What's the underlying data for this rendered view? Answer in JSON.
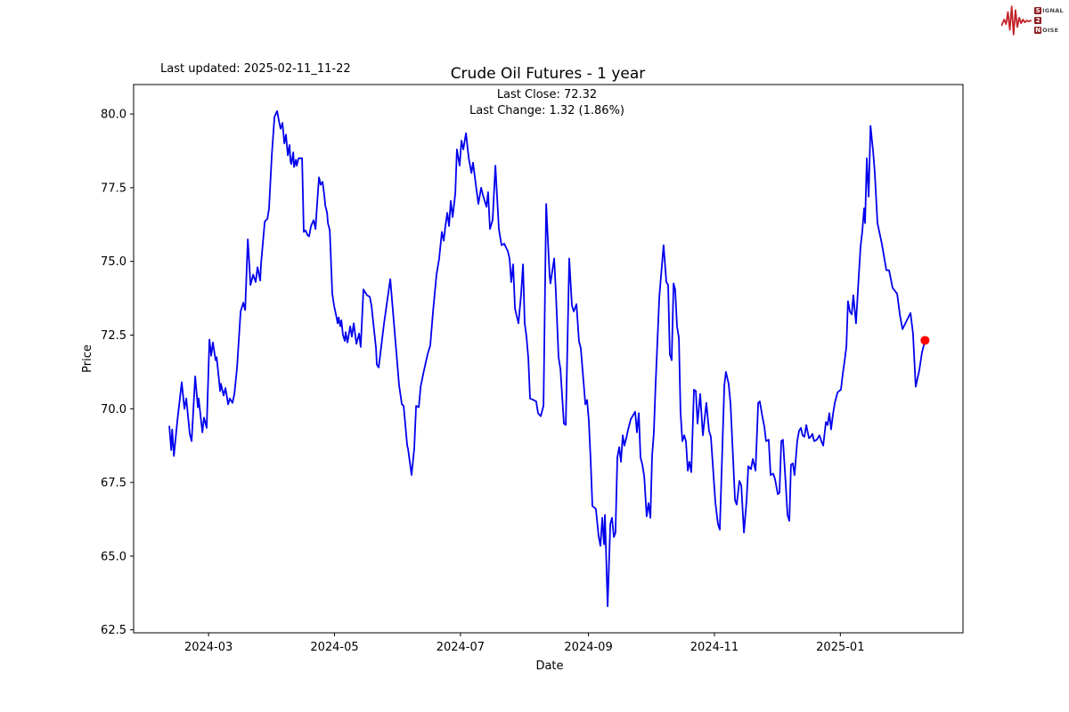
{
  "logo": {
    "rows": [
      {
        "boxed": "S",
        "rest": "IGNAL"
      },
      {
        "boxed": "2",
        "rest": ""
      },
      {
        "boxed": "N",
        "rest": "OISE"
      }
    ],
    "wave_color": "#c32127"
  },
  "chart_data": {
    "type": "line",
    "title": "Crude Oil Futures - 1 year",
    "annotation_line1": "Last Close: 72.32",
    "annotation_line2": "Last Change: 1.32 (1.86%)",
    "last_updated": "Last updated: 2025-02-11_11-22",
    "xlabel": "Date",
    "ylabel": "Price",
    "line_color": "#0000ee",
    "marker_color": "#ff0000",
    "grid": false,
    "legend": "none",
    "x_start_date": "2024-02-11",
    "x_end_date": "2025-02-11",
    "x_range_days": [
      -17.3,
      384.4
    ],
    "y_range": [
      62.4,
      81.0
    ],
    "y_ticks": [
      62.5,
      65.0,
      67.5,
      70.0,
      72.5,
      75.0,
      77.5,
      80.0
    ],
    "x_ticks": [
      {
        "day": 19,
        "label": "2024-03"
      },
      {
        "day": 80,
        "label": "2024-05"
      },
      {
        "day": 141,
        "label": "2024-07"
      },
      {
        "day": 203,
        "label": "2024-09"
      },
      {
        "day": 264,
        "label": "2024-11"
      },
      {
        "day": 325,
        "label": "2025-01"
      }
    ],
    "last_point": {
      "day": 366,
      "price": 72.32
    },
    "last_close": 72.32,
    "last_change": 1.32,
    "last_change_pct": 1.86,
    "points": [
      [
        0,
        69.4
      ],
      [
        0.9,
        68.6
      ],
      [
        1.4,
        69.3
      ],
      [
        2.2,
        68.4
      ],
      [
        3.9,
        69.6
      ],
      [
        6,
        70.9
      ],
      [
        7.3,
        70
      ],
      [
        8.2,
        70.35
      ],
      [
        9.9,
        69.15
      ],
      [
        10.8,
        68.9
      ],
      [
        12.5,
        71.1
      ],
      [
        13.8,
        70.05
      ],
      [
        14.2,
        70.35
      ],
      [
        16,
        69.2
      ],
      [
        16.8,
        69.7
      ],
      [
        18.1,
        69.35
      ],
      [
        19.4,
        72.35
      ],
      [
        20.3,
        71.8
      ],
      [
        21.1,
        72.25
      ],
      [
        22.4,
        71.65
      ],
      [
        22.9,
        71.75
      ],
      [
        24.6,
        70.6
      ],
      [
        25,
        70.85
      ],
      [
        26.3,
        70.45
      ],
      [
        27.2,
        70.7
      ],
      [
        28.5,
        70.15
      ],
      [
        29.3,
        70.35
      ],
      [
        30.6,
        70.2
      ],
      [
        31.5,
        70.5
      ],
      [
        32.8,
        71.4
      ],
      [
        34.5,
        73.3
      ],
      [
        35.8,
        73.6
      ],
      [
        36.7,
        73.35
      ],
      [
        38,
        75.75
      ],
      [
        39.3,
        74.2
      ],
      [
        40.6,
        74.55
      ],
      [
        41.8,
        74.3
      ],
      [
        42.7,
        74.8
      ],
      [
        44,
        74.35
      ],
      [
        44.4,
        74.9
      ],
      [
        46.2,
        76.35
      ],
      [
        47.5,
        76.45
      ],
      [
        48.3,
        76.8
      ],
      [
        49.6,
        78.6
      ],
      [
        50.9,
        79.9
      ],
      [
        52.2,
        80.1
      ],
      [
        53.1,
        79.75
      ],
      [
        53.9,
        79.5
      ],
      [
        54.8,
        79.7
      ],
      [
        55.7,
        79
      ],
      [
        56.5,
        79.3
      ],
      [
        57.4,
        78.6
      ],
      [
        58.2,
        78.95
      ],
      [
        58.7,
        78.4
      ],
      [
        59.1,
        78.3
      ],
      [
        60,
        78.7
      ],
      [
        60.4,
        78.2
      ],
      [
        61.3,
        78.45
      ],
      [
        61.7,
        78.25
      ],
      [
        62.6,
        78.5
      ],
      [
        64.3,
        78.5
      ],
      [
        65.1,
        76
      ],
      [
        66,
        76.05
      ],
      [
        66.9,
        75.9
      ],
      [
        67.7,
        75.85
      ],
      [
        68.6,
        76.2
      ],
      [
        69.9,
        76.4
      ],
      [
        70.8,
        76.1
      ],
      [
        71.2,
        76.55
      ],
      [
        72,
        77.4
      ],
      [
        72.5,
        77.85
      ],
      [
        73.3,
        77.6
      ],
      [
        74.2,
        77.7
      ],
      [
        75.1,
        77.2
      ],
      [
        75.5,
        76.9
      ],
      [
        76.4,
        76.65
      ],
      [
        76.8,
        76.3
      ],
      [
        77.7,
        76.05
      ],
      [
        78.9,
        73.9
      ],
      [
        79.8,
        73.5
      ],
      [
        80.7,
        73.2
      ],
      [
        81.5,
        72.9
      ],
      [
        82,
        73.1
      ],
      [
        82.8,
        72.8
      ],
      [
        83.3,
        73
      ],
      [
        84.1,
        72.5
      ],
      [
        85,
        72.3
      ],
      [
        85.4,
        72.6
      ],
      [
        86.3,
        72.25
      ],
      [
        87.6,
        72.8
      ],
      [
        88.4,
        72.45
      ],
      [
        89.3,
        72.9
      ],
      [
        90.6,
        72.2
      ],
      [
        91.9,
        72.55
      ],
      [
        92.7,
        72.1
      ],
      [
        94,
        74.05
      ],
      [
        95.8,
        73.85
      ],
      [
        97.1,
        73.8
      ],
      [
        97.9,
        73.5
      ],
      [
        100.1,
        72.05
      ],
      [
        100.5,
        71.5
      ],
      [
        101.4,
        71.4
      ],
      [
        104,
        72.9
      ],
      [
        107,
        74.4
      ],
      [
        111.3,
        70.8
      ],
      [
        112.6,
        70.15
      ],
      [
        113.5,
        70.1
      ],
      [
        115.2,
        68.75
      ],
      [
        115.6,
        68.65
      ],
      [
        117.3,
        67.75
      ],
      [
        118.6,
        68.65
      ],
      [
        119.5,
        70.1
      ],
      [
        120.8,
        70.05
      ],
      [
        121.7,
        70.75
      ],
      [
        123,
        71.2
      ],
      [
        125.1,
        71.85
      ],
      [
        126.4,
        72.15
      ],
      [
        127.7,
        73.3
      ],
      [
        129.4,
        74.55
      ],
      [
        130.7,
        75.1
      ],
      [
        132,
        76
      ],
      [
        132.9,
        75.7
      ],
      [
        133.7,
        76.2
      ],
      [
        134.6,
        76.65
      ],
      [
        135.5,
        76.2
      ],
      [
        136.3,
        77.05
      ],
      [
        137.2,
        76.5
      ],
      [
        138.5,
        77.3
      ],
      [
        139.3,
        78.8
      ],
      [
        140.6,
        78.25
      ],
      [
        141.5,
        79.1
      ],
      [
        142.4,
        78.8
      ],
      [
        143.7,
        79.35
      ],
      [
        145,
        78.5
      ],
      [
        146.3,
        78
      ],
      [
        147.1,
        78.35
      ],
      [
        148.8,
        77.4
      ],
      [
        149.7,
        76.95
      ],
      [
        151,
        77.5
      ],
      [
        151.9,
        77.25
      ],
      [
        153.6,
        76.85
      ],
      [
        154.4,
        77.35
      ],
      [
        155.3,
        76.1
      ],
      [
        156.6,
        76.4
      ],
      [
        157.9,
        78.25
      ],
      [
        159.6,
        76.1
      ],
      [
        160.9,
        75.55
      ],
      [
        162.2,
        75.6
      ],
      [
        163.9,
        75.35
      ],
      [
        164.8,
        75.1
      ],
      [
        165.6,
        74.3
      ],
      [
        166.5,
        74.9
      ],
      [
        167.4,
        73.4
      ],
      [
        169.1,
        72.9
      ],
      [
        170.4,
        73.9
      ],
      [
        171.3,
        74.9
      ],
      [
        172.1,
        72.9
      ],
      [
        173,
        72.45
      ],
      [
        173.9,
        71.7
      ],
      [
        174.7,
        70.35
      ],
      [
        176.4,
        70.3
      ],
      [
        177.7,
        70.25
      ],
      [
        178.6,
        69.85
      ],
      [
        179.9,
        69.75
      ],
      [
        181.2,
        70.1
      ],
      [
        182.5,
        76.95
      ],
      [
        184.2,
        74.5
      ],
      [
        184.6,
        74.25
      ],
      [
        186.4,
        75.1
      ],
      [
        187.2,
        73.95
      ],
      [
        188.5,
        71.75
      ],
      [
        189.4,
        71.35
      ],
      [
        191.1,
        69.5
      ],
      [
        192,
        69.45
      ],
      [
        193.7,
        75.1
      ],
      [
        195,
        73.5
      ],
      [
        195.9,
        73.3
      ],
      [
        197.2,
        73.55
      ],
      [
        198.4,
        72.3
      ],
      [
        199.3,
        72.05
      ],
      [
        201.5,
        70.15
      ],
      [
        202.3,
        70.3
      ],
      [
        203.2,
        69.6
      ],
      [
        204.1,
        68.2
      ],
      [
        204.9,
        66.7
      ],
      [
        205.8,
        66.65
      ],
      [
        206.6,
        66.6
      ],
      [
        207.9,
        65.7
      ],
      [
        208.8,
        65.35
      ],
      [
        209.7,
        66.3
      ],
      [
        210.5,
        65.4
      ],
      [
        211,
        66.4
      ],
      [
        212.3,
        63.3
      ],
      [
        213.6,
        66.1
      ],
      [
        214.4,
        66.3
      ],
      [
        215.3,
        65.65
      ],
      [
        216.1,
        65.8
      ],
      [
        217,
        68.35
      ],
      [
        217.9,
        68.7
      ],
      [
        218.7,
        68.2
      ],
      [
        219.6,
        69.1
      ],
      [
        220.4,
        68.75
      ],
      [
        221.3,
        69
      ],
      [
        222.2,
        69.3
      ],
      [
        223.5,
        69.65
      ],
      [
        225.6,
        69.9
      ],
      [
        226.5,
        69.2
      ],
      [
        227.4,
        69.85
      ],
      [
        228.2,
        68.35
      ],
      [
        229.1,
        68.1
      ],
      [
        230,
        67.7
      ],
      [
        231.2,
        66.35
      ],
      [
        232.1,
        66.8
      ],
      [
        233,
        66.3
      ],
      [
        233.8,
        68.4
      ],
      [
        234.7,
        69.2
      ],
      [
        235.5,
        70.8
      ],
      [
        236.4,
        72.3
      ],
      [
        237.3,
        73.8
      ],
      [
        239.4,
        75.55
      ],
      [
        240.7,
        74.3
      ],
      [
        241.6,
        74.2
      ],
      [
        242.4,
        71.85
      ],
      [
        243.3,
        71.65
      ],
      [
        244.2,
        74.25
      ],
      [
        245,
        74.05
      ],
      [
        245.9,
        72.8
      ],
      [
        246.8,
        72.4
      ],
      [
        247.6,
        69.9
      ],
      [
        248.5,
        68.9
      ],
      [
        249.4,
        69.1
      ],
      [
        250.2,
        68.9
      ],
      [
        251.1,
        67.9
      ],
      [
        251.9,
        68.2
      ],
      [
        252.8,
        67.85
      ],
      [
        254.1,
        70.65
      ],
      [
        255,
        70.6
      ],
      [
        255.8,
        69.5
      ],
      [
        257.1,
        70.5
      ],
      [
        258.4,
        69.1
      ],
      [
        260.1,
        70.2
      ],
      [
        261.4,
        69.25
      ],
      [
        262.3,
        69.05
      ],
      [
        264.5,
        66.8
      ],
      [
        265.7,
        66.1
      ],
      [
        266.6,
        65.9
      ],
      [
        268.8,
        70.8
      ],
      [
        269.6,
        71.25
      ],
      [
        270.9,
        70.85
      ],
      [
        271.8,
        70.2
      ],
      [
        274,
        66.9
      ],
      [
        274.8,
        66.75
      ],
      [
        276.1,
        67.55
      ],
      [
        277,
        67.4
      ],
      [
        278.3,
        65.8
      ],
      [
        279.6,
        66.9
      ],
      [
        280.4,
        68.05
      ],
      [
        281.7,
        67.95
      ],
      [
        282.6,
        68.3
      ],
      [
        283.9,
        67.9
      ],
      [
        285.2,
        70.2
      ],
      [
        286,
        70.25
      ],
      [
        287.3,
        69.7
      ],
      [
        288.2,
        69.4
      ],
      [
        289,
        68.9
      ],
      [
        290.3,
        68.95
      ],
      [
        291.2,
        67.75
      ],
      [
        292.5,
        67.8
      ],
      [
        293.4,
        67.6
      ],
      [
        294.7,
        67.1
      ],
      [
        295.5,
        67.15
      ],
      [
        296.4,
        68.9
      ],
      [
        297.2,
        68.95
      ],
      [
        298.5,
        67.5
      ],
      [
        299.4,
        66.4
      ],
      [
        300.3,
        66.2
      ],
      [
        301.1,
        68.1
      ],
      [
        302,
        68.15
      ],
      [
        302.8,
        67.75
      ],
      [
        304.1,
        68.9
      ],
      [
        305,
        69.25
      ],
      [
        305.9,
        69.35
      ],
      [
        306.7,
        69.1
      ],
      [
        307.6,
        69.05
      ],
      [
        308.5,
        69.45
      ],
      [
        309.8,
        69
      ],
      [
        310.6,
        69.05
      ],
      [
        311.5,
        69.15
      ],
      [
        312.3,
        68.9
      ],
      [
        313.6,
        68.95
      ],
      [
        314.9,
        69.1
      ],
      [
        315.8,
        68.9
      ],
      [
        316.7,
        68.75
      ],
      [
        318,
        69.55
      ],
      [
        318.8,
        69.45
      ],
      [
        319.7,
        69.85
      ],
      [
        320.5,
        69.3
      ],
      [
        321.4,
        69.8
      ],
      [
        322.3,
        70.2
      ],
      [
        323.6,
        70.55
      ],
      [
        324.4,
        70.6
      ],
      [
        325.3,
        70.65
      ],
      [
        326.1,
        71.15
      ],
      [
        327,
        71.6
      ],
      [
        327.9,
        72.1
      ],
      [
        328.7,
        73.65
      ],
      [
        329.6,
        73.3
      ],
      [
        330.5,
        73.2
      ],
      [
        331.3,
        73.85
      ],
      [
        332.6,
        72.9
      ],
      [
        333.9,
        74.5
      ],
      [
        334.8,
        75.5
      ],
      [
        335.6,
        76
      ],
      [
        336.5,
        76.8
      ],
      [
        337,
        76.3
      ],
      [
        337.8,
        78.5
      ],
      [
        338.7,
        77.2
      ],
      [
        339.6,
        79.6
      ],
      [
        340.9,
        78.7
      ],
      [
        341.7,
        78
      ],
      [
        343,
        76.3
      ],
      [
        345.1,
        75.6
      ],
      [
        347.3,
        74.7
      ],
      [
        348.6,
        74.7
      ],
      [
        350.3,
        74.1
      ],
      [
        352.5,
        73.9
      ],
      [
        353.8,
        73.2
      ],
      [
        355.1,
        72.7
      ],
      [
        357.2,
        73
      ],
      [
        359,
        73.25
      ],
      [
        360.2,
        72.55
      ],
      [
        361.5,
        70.75
      ],
      [
        363.2,
        71.3
      ],
      [
        364.5,
        71.9
      ],
      [
        366,
        72.32
      ]
    ]
  }
}
